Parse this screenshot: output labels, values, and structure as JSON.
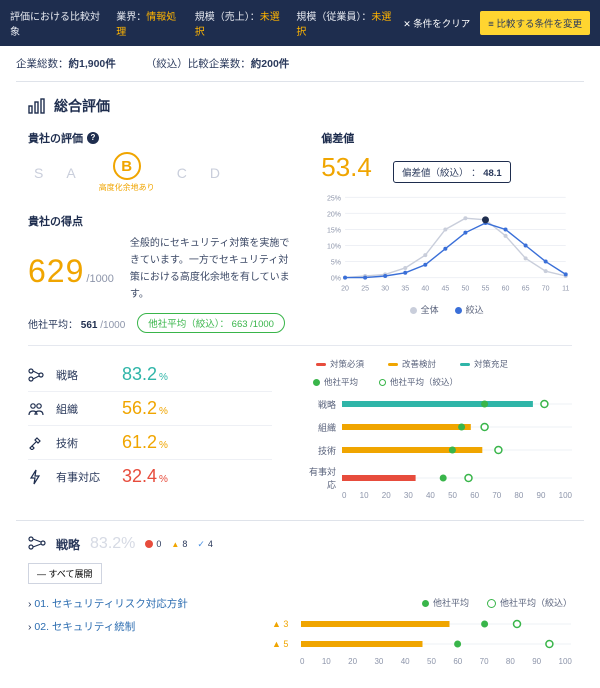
{
  "colors": {
    "navy": "#1e2d4e",
    "amber": "#f0a500",
    "yellow_btn": "#ffd530",
    "green": "#39b54a",
    "teal": "#2fb5a8",
    "blue": "#3a6fd8",
    "red": "#e74c3c",
    "gray": "#c9cedb",
    "axis": "#8d95aa"
  },
  "topbar": {
    "title": "評価における比較対象",
    "filters": [
      {
        "label": "業界：",
        "value": "情報処理"
      },
      {
        "label": "規模（売上）：",
        "value": "未選択"
      },
      {
        "label": "規模（従業員）：",
        "value": "未選択"
      }
    ],
    "clear": "条件をクリア",
    "change": "比較する条件を変更"
  },
  "counts": {
    "total_label": "企業総数：",
    "total_val": "約1,900件",
    "filtered_label": "（絞込）比較企業数：",
    "filtered_val": "約200件"
  },
  "overall": {
    "title": "総合評価",
    "rating_label": "貴社の評価",
    "grades": [
      "S",
      "A",
      "B",
      "C",
      "D"
    ],
    "active_grade": "B",
    "active_sub": "高度化余地あり",
    "score_label": "貴社の得点",
    "score": "629",
    "score_denom": "/1000",
    "desc": "全般的にセキュリティ対策を実施できています。一方でセキュリティ対策における高度化余地を有しています。",
    "other_avg_label": "他社平均：",
    "other_avg_val": "561",
    "other_avg_denom": "/1000",
    "pill": "他社平均（絞込）： 663 /1000"
  },
  "deviation": {
    "label": "偏差値",
    "value": "53.4",
    "badge_label": "偏差値（絞込） ：",
    "badge_value": "48.1",
    "chart": {
      "x_ticks": [
        20,
        25,
        30,
        35,
        40,
        45,
        50,
        55,
        60,
        65,
        70,
        11
      ],
      "y_max": 25,
      "y_ticks": [
        25,
        20,
        15,
        10,
        5,
        0
      ],
      "series_all": [
        0,
        0.5,
        1,
        3,
        7,
        15,
        18.5,
        18,
        13,
        6,
        2,
        0.5
      ],
      "series_filter": [
        0,
        0,
        0.5,
        1.5,
        4,
        9,
        14,
        17,
        15,
        10,
        5,
        1
      ],
      "marker_x_idx": 7,
      "marker_y": 18,
      "color_all": "#c9cedb",
      "color_filter": "#3a6fd8",
      "marker_color": "#1e2d4e",
      "legend_all": "全体",
      "legend_filter": "絞込"
    }
  },
  "categories": [
    {
      "icon": "nodes",
      "name": "戦略",
      "pct": "83.2",
      "color": "#2fb5a8"
    },
    {
      "icon": "people",
      "name": "組織",
      "pct": "56.2",
      "color": "#f0a500"
    },
    {
      "icon": "tools",
      "name": "技術",
      "pct": "61.2",
      "color": "#f0a500"
    },
    {
      "icon": "bolt",
      "name": "有事対応",
      "pct": "32.4",
      "color": "#e74c3c"
    }
  ],
  "bullet": {
    "legend": [
      {
        "text": "対策必須",
        "cls": "bar",
        "color": "#e74c3c"
      },
      {
        "text": "改善検討",
        "cls": "bar",
        "color": "#f0a500"
      },
      {
        "text": "対策充足",
        "cls": "bar",
        "color": "#2fb5a8"
      },
      {
        "text": "他社平均",
        "cls": "dot",
        "color": "#39b54a"
      },
      {
        "text": "他社平均（絞込）",
        "cls": "dot",
        "color_open": "#39b54a"
      }
    ],
    "x_ticks": [
      0,
      10,
      20,
      30,
      40,
      50,
      60,
      70,
      80,
      90,
      100
    ],
    "rows": [
      {
        "label": "戦略",
        "value": 83,
        "color": "#2fb5a8",
        "avg": 62,
        "avg_f": 88
      },
      {
        "label": "組織",
        "value": 56,
        "color": "#f0a500",
        "avg": 52,
        "avg_f": 62
      },
      {
        "label": "技術",
        "value": 61,
        "color": "#f0a500",
        "avg": 48,
        "avg_f": 68
      },
      {
        "label": "有事対応",
        "value": 32,
        "color": "#e74c3c",
        "avg": 44,
        "avg_f": 55
      }
    ]
  },
  "strategy": {
    "title": "戦略",
    "pct": "83.2",
    "chips": {
      "red": "0",
      "yellow": "8",
      "blue": "4"
    },
    "expand": "すべて展開",
    "legend_a": "他社平均",
    "legend_b": "他社平均（絞込）",
    "items": [
      {
        "label": "01. セキュリティリスク対応方針",
        "warn": "3",
        "value": 55,
        "avg": 68,
        "avg_f": 80
      },
      {
        "label": "02. セキュリティ統制",
        "warn": "5",
        "value": 45,
        "avg": 58,
        "avg_f": 92
      }
    ],
    "x_ticks": [
      0,
      10,
      20,
      30,
      40,
      50,
      60,
      70,
      80,
      90,
      100
    ]
  }
}
